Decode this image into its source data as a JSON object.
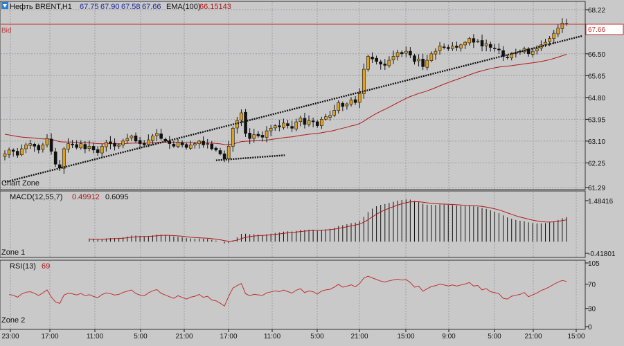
{
  "header": {
    "title": "Нефть BRENT,H1",
    "open": "67.75",
    "high": "67.90",
    "low": "67.58",
    "close": "67.66",
    "ema_label": "EMA(100)",
    "ema_value": "66.15143"
  },
  "bid_label": "Bid",
  "bid_price": "67.66",
  "zones": {
    "chart_zone": "Chart Zone",
    "zone1": "Zone 1",
    "zone2": "Zone 2"
  },
  "colors": {
    "background": "#c9c9c9",
    "grid": "#9aa0a6",
    "bull_candle": "#e0a020",
    "bear_candle": "#111111",
    "ema": "#b01818",
    "bid_line": "#c03030",
    "trendline": "#111111",
    "macd_hist": "#111111",
    "macd_signal": "#b01818",
    "rsi": "#c03030"
  },
  "chart_data": [
    {
      "type": "candlestick",
      "name": "price",
      "y_axis_labels": [
        "68.22",
        "67.66",
        "66.50",
        "65.65",
        "64.80",
        "63.95",
        "63.10",
        "62.25",
        "61.29"
      ],
      "ylim": [
        61.29,
        68.22
      ],
      "x_axis_labels": [
        "23:00",
        "17:00",
        "11:00",
        "5:00",
        "21:00",
        "17:00",
        "11:00",
        "5:00",
        "21:00",
        "15:00",
        "9:00",
        "5:00",
        "21:00",
        "15:00"
      ],
      "closes": [
        62.6,
        62.75,
        62.7,
        62.55,
        62.8,
        62.95,
        63.0,
        62.9,
        62.75,
        62.95,
        63.2,
        62.7,
        62.2,
        62.05,
        62.8,
        63.0,
        62.95,
        62.85,
        63.0,
        62.8,
        62.9,
        62.75,
        62.65,
        62.9,
        63.05,
        63.0,
        62.9,
        62.95,
        63.1,
        63.2,
        63.3,
        63.1,
        63.0,
        62.95,
        63.15,
        63.3,
        63.4,
        63.2,
        63.1,
        63.0,
        62.9,
        63.05,
        62.95,
        62.85,
        62.95,
        63.0,
        63.1,
        62.95,
        63.0,
        62.8,
        62.75,
        62.6,
        62.4,
        62.9,
        63.6,
        63.9,
        64.2,
        63.4,
        63.2,
        63.35,
        63.3,
        63.25,
        63.5,
        63.6,
        63.7,
        63.65,
        63.8,
        63.7,
        63.6,
        63.85,
        64.0,
        63.75,
        63.9,
        63.85,
        63.7,
        63.95,
        64.05,
        64.1,
        64.3,
        64.6,
        64.45,
        64.55,
        64.7,
        64.6,
        64.95,
        65.9,
        66.4,
        66.3,
        66.2,
        66.1,
        66.05,
        66.25,
        66.4,
        66.55,
        66.5,
        66.6,
        66.45,
        66.2,
        66.3,
        66.0,
        66.25,
        66.5,
        66.6,
        66.8,
        66.75,
        66.7,
        66.8,
        66.75,
        66.85,
        66.95,
        67.1,
        66.95,
        67.0,
        66.8,
        66.9,
        66.75,
        66.7,
        66.65,
        66.4,
        66.35,
        66.5,
        66.55,
        66.6,
        66.7,
        66.5,
        66.6,
        66.7,
        66.85,
        66.95,
        67.1,
        67.3,
        67.5,
        67.7,
        67.66
      ],
      "ema_period": 100,
      "trendlines": [
        {
          "from": [
            0,
            61.5
          ],
          "to": [
            137,
            67.2
          ]
        },
        {
          "from": [
            50,
            62.35
          ],
          "to": [
            63,
            62.55
          ]
        }
      ]
    },
    {
      "type": "histogram",
      "name": "macd",
      "indicator_label": "MACD(12,55,7)",
      "value1": "0.49912",
      "value2": "0.6095",
      "y_axis_labels": [
        "1.48416",
        "-0.41801"
      ],
      "ylim": [
        -0.41801,
        1.48416
      ]
    },
    {
      "type": "line",
      "name": "rsi",
      "indicator_label": "RSI(13)",
      "value": "69",
      "y_axis_labels": [
        "105",
        "70",
        "30",
        "0"
      ],
      "ylim": [
        0,
        105
      ]
    }
  ]
}
